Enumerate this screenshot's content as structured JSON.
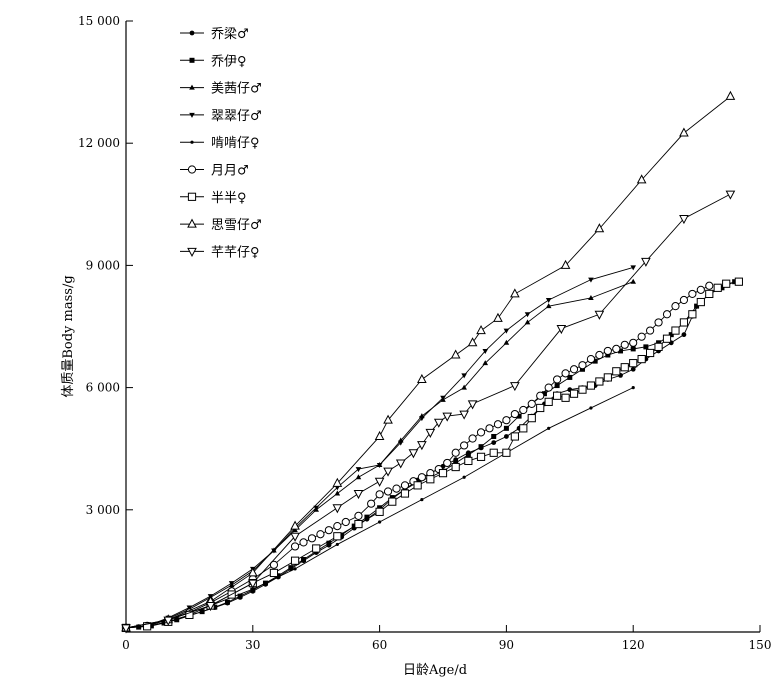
{
  "chart_data": {
    "type": "line",
    "title": "",
    "xlabel": "日龄Age/d",
    "ylabel": "体质量Body mass/g",
    "xlim": [
      0,
      150
    ],
    "ylim": [
      0,
      15000
    ],
    "xticks": [
      0,
      30,
      60,
      90,
      120,
      150
    ],
    "yticks": [
      3000,
      6000,
      9000,
      12000,
      15000
    ],
    "xtick_labels": [
      "0",
      "30",
      "60",
      "90",
      "120",
      "150"
    ],
    "ytick_labels": [
      "3 000",
      "6 000",
      "9 000",
      "12 000",
      "15 000"
    ],
    "grid": false,
    "legend_position": "top-left",
    "series": [
      {
        "name": "乔梁♂",
        "marker": "dot",
        "color": "#000000",
        "points": [
          [
            0,
            120
          ],
          [
            3,
            130
          ],
          [
            6,
            160
          ],
          [
            9,
            230
          ],
          [
            12,
            320
          ],
          [
            15,
            410
          ],
          [
            18,
            500
          ],
          [
            21,
            600
          ],
          [
            24,
            710
          ],
          [
            27,
            850
          ],
          [
            30,
            1000
          ],
          [
            33,
            1170
          ],
          [
            36,
            1350
          ],
          [
            39,
            1550
          ],
          [
            42,
            1750
          ],
          [
            45,
            1950
          ],
          [
            48,
            2130
          ],
          [
            51,
            2330
          ],
          [
            54,
            2550
          ],
          [
            57,
            2770
          ],
          [
            60,
            3000
          ],
          [
            63,
            3270
          ],
          [
            66,
            3500
          ],
          [
            69,
            3730
          ],
          [
            72,
            3900
          ],
          [
            75,
            4070
          ],
          [
            78,
            4230
          ],
          [
            81,
            4400
          ],
          [
            84,
            4520
          ],
          [
            87,
            4650
          ],
          [
            90,
            4800
          ],
          [
            93,
            5000
          ],
          [
            96,
            5300
          ],
          [
            99,
            5600
          ],
          [
            102,
            5850
          ],
          [
            105,
            5950
          ],
          [
            108,
            6000
          ],
          [
            111,
            6050
          ],
          [
            114,
            6200
          ],
          [
            117,
            6300
          ],
          [
            120,
            6450
          ],
          [
            123,
            6700
          ],
          [
            126,
            6900
          ],
          [
            129,
            7100
          ],
          [
            132,
            7300
          ],
          [
            134,
            7750
          ]
        ]
      },
      {
        "name": "乔伊♀",
        "marker": "square-filled",
        "color": "#000000",
        "points": [
          [
            0,
            110
          ],
          [
            3,
            120
          ],
          [
            6,
            150
          ],
          [
            9,
            220
          ],
          [
            12,
            300
          ],
          [
            15,
            400
          ],
          [
            18,
            500
          ],
          [
            21,
            610
          ],
          [
            24,
            730
          ],
          [
            27,
            880
          ],
          [
            30,
            1030
          ],
          [
            33,
            1200
          ],
          [
            36,
            1380
          ],
          [
            39,
            1580
          ],
          [
            42,
            1780
          ],
          [
            45,
            1980
          ],
          [
            48,
            2180
          ],
          [
            51,
            2380
          ],
          [
            54,
            2600
          ],
          [
            57,
            2820
          ],
          [
            60,
            3050
          ],
          [
            63,
            3300
          ],
          [
            66,
            3500
          ],
          [
            69,
            3680
          ],
          [
            72,
            3800
          ],
          [
            75,
            3950
          ],
          [
            78,
            4150
          ],
          [
            81,
            4350
          ],
          [
            84,
            4550
          ],
          [
            87,
            4800
          ],
          [
            90,
            5000
          ],
          [
            93,
            5300
          ],
          [
            96,
            5600
          ],
          [
            99,
            5850
          ],
          [
            102,
            6050
          ],
          [
            105,
            6250
          ],
          [
            108,
            6450
          ],
          [
            111,
            6650
          ],
          [
            114,
            6800
          ],
          [
            117,
            6900
          ],
          [
            120,
            6950
          ],
          [
            123,
            7000
          ],
          [
            126,
            7100
          ],
          [
            129,
            7300
          ],
          [
            132,
            7600
          ],
          [
            135,
            8000
          ],
          [
            138,
            8300
          ],
          [
            141,
            8450
          ],
          [
            144,
            8600
          ]
        ]
      },
      {
        "name": "美茜仔♂",
        "marker": "triangle-up-filled",
        "color": "#000000",
        "points": [
          [
            0,
            100
          ],
          [
            5,
            150
          ],
          [
            10,
            330
          ],
          [
            15,
            560
          ],
          [
            20,
            850
          ],
          [
            25,
            1150
          ],
          [
            30,
            1500
          ],
          [
            35,
            2000
          ],
          [
            40,
            2500
          ],
          [
            45,
            3000
          ],
          [
            50,
            3400
          ],
          [
            55,
            3800
          ],
          [
            60,
            4100
          ],
          [
            65,
            4700
          ],
          [
            70,
            5300
          ],
          [
            75,
            5700
          ],
          [
            80,
            6000
          ],
          [
            85,
            6600
          ],
          [
            90,
            7100
          ],
          [
            95,
            7600
          ],
          [
            100,
            8000
          ],
          [
            110,
            8200
          ],
          [
            120,
            8600
          ]
        ]
      },
      {
        "name": "翠翠仔♂",
        "marker": "triangle-down-filled",
        "color": "#000000",
        "points": [
          [
            0,
            100
          ],
          [
            5,
            150
          ],
          [
            10,
            350
          ],
          [
            15,
            600
          ],
          [
            20,
            880
          ],
          [
            25,
            1200
          ],
          [
            30,
            1550
          ],
          [
            35,
            2000
          ],
          [
            40,
            2550
          ],
          [
            45,
            3050
          ],
          [
            50,
            3550
          ],
          [
            55,
            4000
          ],
          [
            60,
            4100
          ],
          [
            65,
            4650
          ],
          [
            70,
            5250
          ],
          [
            75,
            5750
          ],
          [
            80,
            6300
          ],
          [
            85,
            6900
          ],
          [
            90,
            7400
          ],
          [
            95,
            7800
          ],
          [
            100,
            8150
          ],
          [
            110,
            8650
          ],
          [
            120,
            8950
          ]
        ]
      },
      {
        "name": "啃啃仔♀",
        "marker": "diamond-small",
        "color": "#000000",
        "points": [
          [
            0,
            100
          ],
          [
            10,
            300
          ],
          [
            20,
            650
          ],
          [
            30,
            1050
          ],
          [
            40,
            1550
          ],
          [
            50,
            2150
          ],
          [
            60,
            2700
          ],
          [
            70,
            3250
          ],
          [
            80,
            3800
          ],
          [
            90,
            4400
          ],
          [
            100,
            5000
          ],
          [
            110,
            5500
          ],
          [
            120,
            6000
          ]
        ]
      },
      {
        "name": "月月♂",
        "marker": "circle-open",
        "color": "#000000",
        "points": [
          [
            0,
            100
          ],
          [
            5,
            150
          ],
          [
            10,
            300
          ],
          [
            15,
            480
          ],
          [
            20,
            720
          ],
          [
            25,
            1000
          ],
          [
            30,
            1300
          ],
          [
            35,
            1650
          ],
          [
            40,
            2100
          ],
          [
            42,
            2200
          ],
          [
            44,
            2300
          ],
          [
            46,
            2400
          ],
          [
            48,
            2500
          ],
          [
            50,
            2600
          ],
          [
            52,
            2700
          ],
          [
            55,
            2850
          ],
          [
            58,
            3150
          ],
          [
            60,
            3380
          ],
          [
            62,
            3450
          ],
          [
            64,
            3520
          ],
          [
            66,
            3600
          ],
          [
            68,
            3700
          ],
          [
            70,
            3800
          ],
          [
            72,
            3900
          ],
          [
            74,
            4000
          ],
          [
            76,
            4150
          ],
          [
            78,
            4400
          ],
          [
            80,
            4580
          ],
          [
            82,
            4750
          ],
          [
            84,
            4900
          ],
          [
            86,
            5000
          ],
          [
            88,
            5100
          ],
          [
            90,
            5200
          ],
          [
            92,
            5350
          ],
          [
            94,
            5450
          ],
          [
            96,
            5600
          ],
          [
            98,
            5800
          ],
          [
            100,
            6000
          ],
          [
            102,
            6200
          ],
          [
            104,
            6350
          ],
          [
            106,
            6450
          ],
          [
            108,
            6550
          ],
          [
            110,
            6700
          ],
          [
            112,
            6800
          ],
          [
            114,
            6900
          ],
          [
            116,
            6950
          ],
          [
            118,
            7050
          ],
          [
            120,
            7100
          ],
          [
            122,
            7250
          ],
          [
            124,
            7400
          ],
          [
            126,
            7600
          ],
          [
            128,
            7800
          ],
          [
            130,
            8000
          ],
          [
            132,
            8150
          ],
          [
            134,
            8300
          ],
          [
            136,
            8400
          ],
          [
            138,
            8500
          ]
        ]
      },
      {
        "name": "半半♀",
        "marker": "square-open",
        "color": "#000000",
        "points": [
          [
            0,
            100
          ],
          [
            5,
            140
          ],
          [
            10,
            250
          ],
          [
            15,
            420
          ],
          [
            20,
            650
          ],
          [
            25,
            920
          ],
          [
            30,
            1200
          ],
          [
            35,
            1450
          ],
          [
            40,
            1750
          ],
          [
            45,
            2050
          ],
          [
            50,
            2350
          ],
          [
            55,
            2650
          ],
          [
            60,
            2950
          ],
          [
            63,
            3200
          ],
          [
            66,
            3400
          ],
          [
            69,
            3600
          ],
          [
            72,
            3750
          ],
          [
            75,
            3900
          ],
          [
            78,
            4050
          ],
          [
            81,
            4200
          ],
          [
            84,
            4300
          ],
          [
            87,
            4400
          ],
          [
            90,
            4400
          ],
          [
            92,
            4800
          ],
          [
            94,
            5000
          ],
          [
            96,
            5250
          ],
          [
            98,
            5500
          ],
          [
            100,
            5650
          ],
          [
            102,
            5800
          ],
          [
            104,
            5750
          ],
          [
            106,
            5850
          ],
          [
            108,
            5950
          ],
          [
            110,
            6050
          ],
          [
            112,
            6150
          ],
          [
            114,
            6250
          ],
          [
            116,
            6400
          ],
          [
            118,
            6500
          ],
          [
            120,
            6600
          ],
          [
            122,
            6700
          ],
          [
            124,
            6850
          ],
          [
            126,
            7000
          ],
          [
            128,
            7200
          ],
          [
            130,
            7400
          ],
          [
            132,
            7600
          ],
          [
            134,
            7800
          ],
          [
            136,
            8100
          ],
          [
            138,
            8300
          ],
          [
            140,
            8450
          ],
          [
            142,
            8550
          ],
          [
            145,
            8600
          ]
        ]
      },
      {
        "name": "思雪仔♂",
        "marker": "triangle-up-open",
        "color": "#000000",
        "points": [
          [
            0,
            100
          ],
          [
            10,
            300
          ],
          [
            20,
            750
          ],
          [
            30,
            1450
          ],
          [
            40,
            2600
          ],
          [
            50,
            3650
          ],
          [
            60,
            4800
          ],
          [
            62,
            5200
          ],
          [
            70,
            6200
          ],
          [
            78,
            6800
          ],
          [
            82,
            7100
          ],
          [
            84,
            7400
          ],
          [
            88,
            7700
          ],
          [
            92,
            8300
          ],
          [
            104,
            9000
          ],
          [
            112,
            9900
          ],
          [
            122,
            11100
          ],
          [
            132,
            12250
          ],
          [
            143,
            13150
          ]
        ]
      },
      {
        "name": "芊芊仔♀",
        "marker": "triangle-down-open",
        "color": "#000000",
        "points": [
          [
            0,
            100
          ],
          [
            10,
            290
          ],
          [
            20,
            650
          ],
          [
            30,
            1200
          ],
          [
            40,
            2350
          ],
          [
            50,
            3050
          ],
          [
            55,
            3400
          ],
          [
            60,
            3700
          ],
          [
            62,
            3950
          ],
          [
            65,
            4150
          ],
          [
            68,
            4400
          ],
          [
            70,
            4600
          ],
          [
            72,
            4900
          ],
          [
            74,
            5150
          ],
          [
            76,
            5300
          ],
          [
            80,
            5350
          ],
          [
            82,
            5600
          ],
          [
            92,
            6050
          ],
          [
            103,
            7450
          ],
          [
            112,
            7800
          ],
          [
            123,
            9100
          ],
          [
            132,
            10150
          ],
          [
            143,
            10750
          ]
        ]
      }
    ]
  }
}
